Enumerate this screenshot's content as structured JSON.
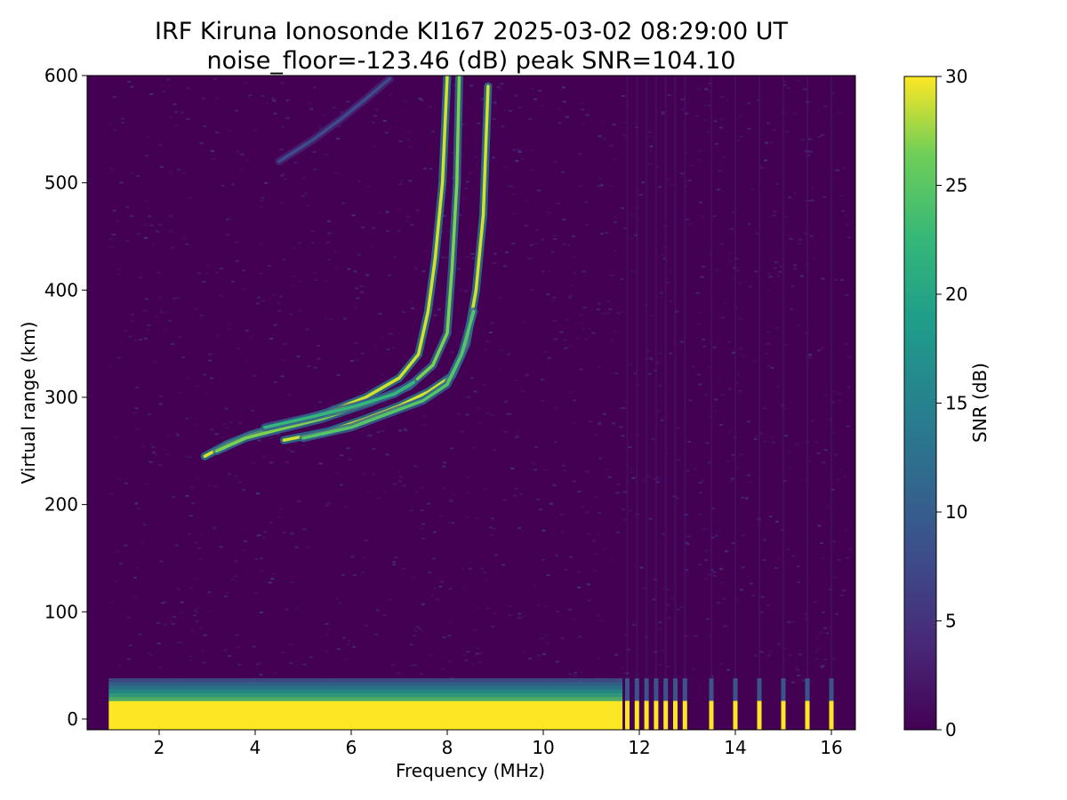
{
  "chart_data": {
    "type": "heatmap",
    "title": "IRF Kiruna Ionosonde KI167 2025-03-02 08:29:00  UT",
    "subtitle": "noise_floor=-123.46 (dB) peak SNR=104.10",
    "xlabel": "Frequency (MHz)",
    "ylabel": "Virtual range (km)",
    "colorbar_label": "SNR (dB)",
    "colormap": "viridis",
    "colors": {
      "background": "#440154",
      "low": "#440154",
      "high": "#fde725"
    },
    "xlim": [
      0.5,
      16.5
    ],
    "ylim": [
      -10,
      600
    ],
    "clim": [
      0,
      30
    ],
    "xticks": [
      2,
      4,
      6,
      8,
      10,
      12,
      14,
      16
    ],
    "yticks": [
      0,
      100,
      200,
      300,
      400,
      500,
      600
    ],
    "cticks": [
      0,
      5,
      10,
      15,
      20,
      25,
      30
    ],
    "data_freq_range": [
      0.95,
      16.4
    ],
    "traces": [
      {
        "points": [
          [
            2.95,
            245
          ],
          [
            3.4,
            256
          ],
          [
            3.9,
            265
          ],
          [
            4.6,
            274
          ],
          [
            5.5,
            286
          ],
          [
            6.3,
            300
          ],
          [
            7.0,
            318
          ],
          [
            7.4,
            340
          ],
          [
            7.6,
            380
          ],
          [
            7.75,
            430
          ],
          [
            7.9,
            500
          ],
          [
            8.0,
            600
          ]
        ],
        "snr": 28
      },
      {
        "points": [
          [
            3.2,
            250
          ],
          [
            3.8,
            262
          ],
          [
            4.5,
            270
          ],
          [
            5.4,
            280
          ],
          [
            6.4,
            295
          ],
          [
            7.2,
            310
          ],
          [
            7.7,
            330
          ],
          [
            8.0,
            360
          ],
          [
            8.1,
            420
          ],
          [
            8.2,
            500
          ],
          [
            8.25,
            600
          ]
        ],
        "snr": 24
      },
      {
        "points": [
          [
            4.6,
            260
          ],
          [
            5.5,
            268
          ],
          [
            6.3,
            280
          ],
          [
            7.0,
            292
          ],
          [
            7.6,
            305
          ],
          [
            8.1,
            320
          ],
          [
            8.4,
            350
          ],
          [
            8.6,
            400
          ],
          [
            8.75,
            470
          ],
          [
            8.85,
            590
          ]
        ],
        "snr": 28
      },
      {
        "points": [
          [
            5.0,
            262
          ],
          [
            6.0,
            272
          ],
          [
            6.9,
            287
          ],
          [
            7.5,
            297
          ],
          [
            8.0,
            312
          ],
          [
            8.3,
            340
          ],
          [
            8.55,
            380
          ]
        ],
        "snr": 22
      },
      {
        "points": [
          [
            4.2,
            272
          ],
          [
            5.2,
            282
          ],
          [
            6.1,
            292
          ],
          [
            6.9,
            303
          ],
          [
            7.3,
            314
          ]
        ],
        "snr": 20
      },
      {
        "points": [
          [
            4.5,
            520
          ],
          [
            5.2,
            540
          ],
          [
            5.8,
            560
          ],
          [
            6.3,
            578
          ],
          [
            6.8,
            597
          ]
        ],
        "snr": 7
      }
    ],
    "ground_band": {
      "range_km": [
        0,
        17
      ],
      "freq_range": [
        0.95,
        11.65
      ],
      "snr": 30
    },
    "ground_edge": {
      "range_km": [
        17,
        38
      ],
      "snr_range": [
        8,
        22
      ]
    },
    "high_freq_columns": [
      11.75,
      11.95,
      12.15,
      12.35,
      12.55,
      12.75,
      12.95,
      13.5,
      14.0,
      14.5,
      15.0,
      15.5,
      16.0
    ]
  }
}
